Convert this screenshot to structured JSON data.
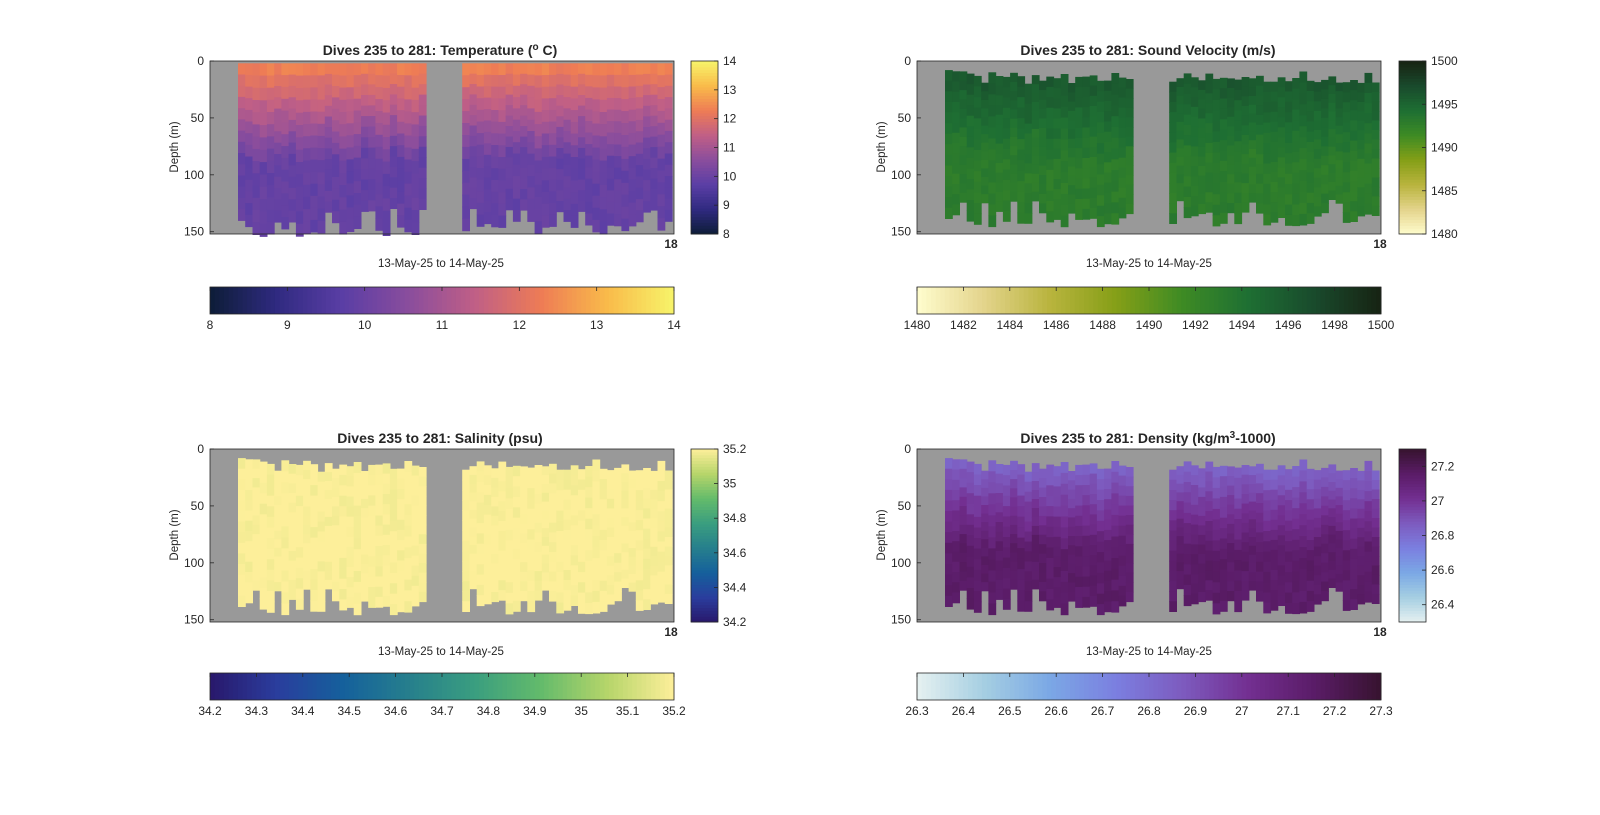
{
  "figure": {
    "date_label": "13-May-25 to 14-May-25",
    "ylabel": "Depth (m)",
    "depth_ticks": [
      "0",
      "50",
      "100",
      "150"
    ],
    "end_tick_label": "18",
    "background_color": "#999999"
  },
  "chart_data": [
    {
      "type": "heatmap",
      "title_prefix": "Dives 235 to 281: Temperature (",
      "title_sup": "o",
      "title_suffix": " C)",
      "xlabel": "13-May-25 to 14-May-25",
      "ylabel": "Depth (m)",
      "ylim": [
        0,
        152
      ],
      "y_reversed": true,
      "colormap": "thermal",
      "colormap_stops": [
        "#0d1d37",
        "#2f2a80",
        "#5a3ea5",
        "#8a4d9d",
        "#c05f86",
        "#ee7c55",
        "#f9bb4a",
        "#f7f46a"
      ],
      "clim": [
        8,
        14
      ],
      "side_colorbar_ticks": [
        8,
        9,
        10,
        11,
        12,
        13,
        14
      ],
      "bottom_colorbar_ticks": [
        8,
        9,
        10,
        11,
        12,
        13,
        14
      ],
      "surface_value": 12.3,
      "deep_value": 9.9,
      "gap_fraction": [
        0.48,
        0.54
      ]
    },
    {
      "type": "heatmap",
      "title_prefix": "Dives 235 to 281: Sound Velocity (m/s)",
      "title_sup": "",
      "title_suffix": "",
      "xlabel": "13-May-25 to 14-May-25",
      "ylabel": "Depth (m)",
      "ylim": [
        0,
        152
      ],
      "y_reversed": true,
      "colormap": "speed",
      "colormap_stops": [
        "#fffdce",
        "#e4d48c",
        "#b9b43e",
        "#859f17",
        "#3e8b24",
        "#1e6f33",
        "#194a2c",
        "#172313"
      ],
      "clim": [
        1480,
        1500
      ],
      "side_colorbar_ticks": [
        1480,
        1485,
        1490,
        1495,
        1500
      ],
      "bottom_colorbar_ticks": [
        1480,
        1482,
        1484,
        1486,
        1488,
        1490,
        1492,
        1494,
        1496,
        1498,
        1500
      ],
      "surface_value": 1496,
      "deep_value": 1493,
      "gap_fraction": [
        0.48,
        0.54
      ]
    },
    {
      "type": "heatmap",
      "title_prefix": "Dives 235 to 281: Salinity (psu)",
      "title_sup": "",
      "title_suffix": "",
      "xlabel": "13-May-25 to 14-May-25",
      "ylabel": "Depth (m)",
      "ylim": [
        0,
        152
      ],
      "y_reversed": true,
      "colormap": "haline",
      "colormap_stops": [
        "#29186b",
        "#2a3d9d",
        "#15609c",
        "#267f8d",
        "#3a9e7f",
        "#64bb6b",
        "#b6d56a",
        "#fdef9a"
      ],
      "clim": [
        34.2,
        35.2
      ],
      "side_colorbar_ticks": [
        34.2,
        34.4,
        34.6,
        34.8,
        35,
        35.2
      ],
      "bottom_colorbar_ticks": [
        34.2,
        34.3,
        34.4,
        34.5,
        34.6,
        34.7,
        34.8,
        34.9,
        35,
        35.1,
        35.2
      ],
      "surface_value": 35.2,
      "deep_value": 35.2,
      "gap_fraction": [
        0.48,
        0.54
      ]
    },
    {
      "type": "heatmap",
      "title_prefix": "Dives 235 to 281: Density (kg/m",
      "title_sup": "3",
      "title_suffix": "-1000)",
      "xlabel": "13-May-25 to 14-May-25",
      "ylabel": "Depth (m)",
      "ylim": [
        0,
        152
      ],
      "y_reversed": true,
      "colormap": "dense",
      "colormap_stops": [
        "#e6f1f1",
        "#a6cfe2",
        "#7ba8e5",
        "#7b7fe0",
        "#7d5bbf",
        "#732f91",
        "#5a1c67",
        "#37132f"
      ],
      "clim": [
        26.3,
        27.3
      ],
      "side_colorbar_ticks": [
        26.4,
        26.6,
        26.8,
        27,
        27.2
      ],
      "bottom_colorbar_ticks": [
        26.3,
        26.4,
        26.5,
        26.6,
        26.7,
        26.8,
        26.9,
        27,
        27.1,
        27.2,
        27.3
      ],
      "surface_value": 26.85,
      "deep_value": 27.15,
      "gap_fraction": [
        0.48,
        0.54
      ]
    }
  ]
}
